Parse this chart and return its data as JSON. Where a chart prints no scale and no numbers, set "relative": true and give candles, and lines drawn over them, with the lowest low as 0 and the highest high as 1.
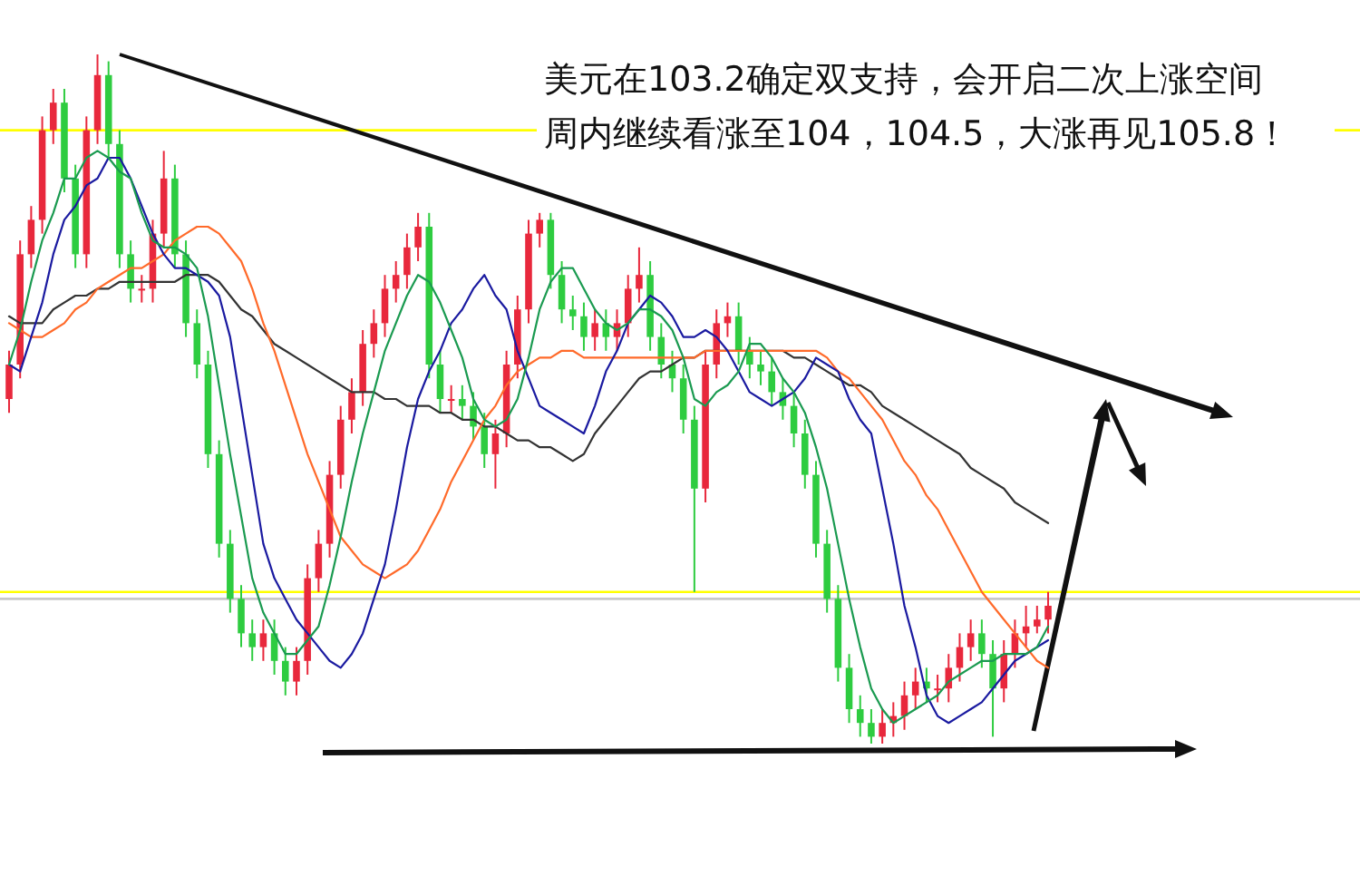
{
  "chart_data": {
    "type": "candlestick",
    "title": "美元在103.2确定双支持，会开启二次上涨空间",
    "subtitle": "周内继续看涨至104，104.5，大涨再见105.8！",
    "relative": true,
    "categories": [
      null,
      null,
      null,
      null,
      null,
      null,
      null,
      null,
      null,
      null,
      null,
      null,
      null,
      null,
      null,
      null,
      null,
      null,
      null,
      null,
      null,
      null,
      null,
      null,
      null,
      null,
      null,
      null,
      null,
      null,
      null,
      null,
      null,
      null,
      null,
      null,
      null,
      null,
      null,
      null,
      null,
      null,
      null,
      null,
      null,
      null,
      null,
      null,
      null,
      null,
      null,
      null,
      null,
      null,
      null,
      null,
      null,
      null,
      null,
      null,
      null,
      null,
      null,
      null,
      null,
      null,
      null,
      null,
      null,
      null,
      null,
      null,
      null,
      null,
      null,
      null,
      null,
      null,
      null,
      null,
      null,
      null,
      null,
      null,
      null,
      null,
      null,
      null,
      null,
      null,
      null,
      null,
      null,
      null,
      null
    ],
    "colors": [
      "#e8283c",
      "#e8283c",
      "#e8283c",
      "#e8283c",
      "#e8283c",
      "#2ecc40",
      "#2ecc40",
      "#e8283c",
      "#e8283c",
      "#2ecc40",
      "#2ecc40",
      "#2ecc40",
      "#e8283c",
      "#e8283c",
      "#e8283c",
      "#2ecc40",
      "#2ecc40",
      "#2ecc40",
      "#2ecc40",
      "#2ecc40",
      "#2ecc40",
      "#2ecc40",
      "#2ecc40",
      "#e8283c",
      "#2ecc40",
      "#2ecc40",
      "#e8283c",
      "#e8283c",
      "#e8283c",
      "#e8283c",
      "#e8283c",
      "#e8283c",
      "#e8283c",
      "#e8283c",
      "#e8283c",
      "#e8283c",
      "#e8283c",
      "#e8283c",
      "#2ecc40",
      "#2ecc40",
      "#e8283c",
      "#2ecc40",
      "#2ecc40",
      "#2ecc40",
      "#e8283c",
      "#e8283c",
      "#e8283c",
      "#e8283c",
      "#e8283c",
      "#2ecc40",
      "#2ecc40",
      "#2ecc40",
      "#2ecc40",
      "#e8283c",
      "#2ecc40",
      "#e8283c",
      "#e8283c",
      "#e8283c",
      "#2ecc40",
      "#2ecc40",
      "#2ecc40",
      "#2ecc40",
      "#2ecc40",
      "#e8283c",
      "#e8283c",
      "#e8283c",
      "#2ecc40",
      "#2ecc40",
      "#2ecc40",
      "#2ecc40",
      "#2ecc40",
      "#2ecc40",
      "#2ecc40",
      "#2ecc40",
      "#2ecc40",
      "#2ecc40",
      "#2ecc40",
      "#2ecc40",
      "#2ecc40",
      "#e8283c",
      "#e8283c",
      "#e8283c",
      "#e8283c",
      "#2ecc40",
      "#e8283c",
      "#e8283c",
      "#e8283c",
      "#e8283c",
      "#2ecc40",
      "#2ecc40",
      "#e8283c",
      "#e8283c",
      "#e8283c",
      "#e8283c",
      "#e8283c"
    ],
    "ohlc": [
      [
        0.5,
        0.57,
        0.48,
        0.55
      ],
      [
        0.55,
        0.73,
        0.53,
        0.71
      ],
      [
        0.71,
        0.78,
        0.69,
        0.76
      ],
      [
        0.76,
        0.91,
        0.74,
        0.89
      ],
      [
        0.89,
        0.95,
        0.87,
        0.93
      ],
      [
        0.93,
        0.95,
        0.8,
        0.82
      ],
      [
        0.82,
        0.84,
        0.69,
        0.71
      ],
      [
        0.71,
        0.91,
        0.69,
        0.89
      ],
      [
        0.89,
        1.0,
        0.87,
        0.97
      ],
      [
        0.97,
        0.99,
        0.85,
        0.87
      ],
      [
        0.87,
        0.89,
        0.69,
        0.71
      ],
      [
        0.71,
        0.73,
        0.64,
        0.66
      ],
      [
        0.66,
        0.68,
        0.64,
        0.66
      ],
      [
        0.66,
        0.76,
        0.64,
        0.74
      ],
      [
        0.74,
        0.86,
        0.72,
        0.82
      ],
      [
        0.82,
        0.84,
        0.69,
        0.71
      ],
      [
        0.71,
        0.73,
        0.59,
        0.61
      ],
      [
        0.61,
        0.63,
        0.53,
        0.55
      ],
      [
        0.55,
        0.57,
        0.4,
        0.42
      ],
      [
        0.42,
        0.44,
        0.27,
        0.29
      ],
      [
        0.29,
        0.31,
        0.19,
        0.21
      ],
      [
        0.21,
        0.23,
        0.14,
        0.16
      ],
      [
        0.16,
        0.18,
        0.12,
        0.14
      ],
      [
        0.14,
        0.18,
        0.12,
        0.16
      ],
      [
        0.16,
        0.18,
        0.1,
        0.12
      ],
      [
        0.12,
        0.14,
        0.07,
        0.09
      ],
      [
        0.09,
        0.14,
        0.07,
        0.12
      ],
      [
        0.12,
        0.26,
        0.1,
        0.24
      ],
      [
        0.24,
        0.31,
        0.22,
        0.29
      ],
      [
        0.29,
        0.41,
        0.27,
        0.39
      ],
      [
        0.39,
        0.49,
        0.37,
        0.47
      ],
      [
        0.47,
        0.53,
        0.45,
        0.51
      ],
      [
        0.51,
        0.6,
        0.49,
        0.58
      ],
      [
        0.58,
        0.63,
        0.56,
        0.61
      ],
      [
        0.61,
        0.68,
        0.59,
        0.66
      ],
      [
        0.66,
        0.7,
        0.64,
        0.68
      ],
      [
        0.68,
        0.74,
        0.66,
        0.72
      ],
      [
        0.72,
        0.77,
        0.7,
        0.75
      ],
      [
        0.75,
        0.77,
        0.53,
        0.55
      ],
      [
        0.55,
        0.57,
        0.48,
        0.5
      ],
      [
        0.5,
        0.52,
        0.48,
        0.5
      ],
      [
        0.5,
        0.52,
        0.47,
        0.49
      ],
      [
        0.49,
        0.51,
        0.44,
        0.46
      ],
      [
        0.46,
        0.48,
        0.4,
        0.42
      ],
      [
        0.42,
        0.47,
        0.37,
        0.45
      ],
      [
        0.45,
        0.57,
        0.43,
        0.55
      ],
      [
        0.55,
        0.65,
        0.53,
        0.63
      ],
      [
        0.63,
        0.76,
        0.61,
        0.74
      ],
      [
        0.74,
        0.77,
        0.72,
        0.76
      ],
      [
        0.76,
        0.77,
        0.66,
        0.68
      ],
      [
        0.68,
        0.7,
        0.61,
        0.63
      ],
      [
        0.63,
        0.65,
        0.6,
        0.62
      ],
      [
        0.62,
        0.64,
        0.57,
        0.59
      ],
      [
        0.59,
        0.63,
        0.57,
        0.61
      ],
      [
        0.61,
        0.63,
        0.57,
        0.59
      ],
      [
        0.59,
        0.63,
        0.57,
        0.61
      ],
      [
        0.61,
        0.68,
        0.59,
        0.66
      ],
      [
        0.66,
        0.72,
        0.64,
        0.68
      ],
      [
        0.68,
        0.7,
        0.57,
        0.59
      ],
      [
        0.59,
        0.61,
        0.53,
        0.55
      ],
      [
        0.55,
        0.57,
        0.51,
        0.53
      ],
      [
        0.53,
        0.55,
        0.45,
        0.47
      ],
      [
        0.47,
        0.49,
        0.22,
        0.37
      ],
      [
        0.37,
        0.57,
        0.35,
        0.55
      ],
      [
        0.55,
        0.63,
        0.53,
        0.61
      ],
      [
        0.61,
        0.64,
        0.59,
        0.62
      ],
      [
        0.62,
        0.64,
        0.55,
        0.57
      ],
      [
        0.57,
        0.59,
        0.53,
        0.55
      ],
      [
        0.55,
        0.57,
        0.52,
        0.54
      ],
      [
        0.54,
        0.56,
        0.49,
        0.51
      ],
      [
        0.51,
        0.53,
        0.47,
        0.49
      ],
      [
        0.49,
        0.51,
        0.43,
        0.45
      ],
      [
        0.45,
        0.47,
        0.37,
        0.39
      ],
      [
        0.39,
        0.41,
        0.27,
        0.29
      ],
      [
        0.29,
        0.31,
        0.19,
        0.21
      ],
      [
        0.21,
        0.23,
        0.09,
        0.11
      ],
      [
        0.11,
        0.13,
        0.03,
        0.05
      ],
      [
        0.05,
        0.07,
        0.01,
        0.03
      ],
      [
        0.03,
        0.05,
        0.0,
        0.01
      ],
      [
        0.01,
        0.05,
        0.0,
        0.03
      ],
      [
        0.03,
        0.06,
        0.01,
        0.04
      ],
      [
        0.04,
        0.09,
        0.02,
        0.07
      ],
      [
        0.07,
        0.11,
        0.05,
        0.09
      ],
      [
        0.09,
        0.11,
        0.06,
        0.08
      ],
      [
        0.08,
        0.1,
        0.06,
        0.08
      ],
      [
        0.08,
        0.13,
        0.06,
        0.11
      ],
      [
        0.11,
        0.16,
        0.09,
        0.14
      ],
      [
        0.14,
        0.18,
        0.12,
        0.16
      ],
      [
        0.16,
        0.18,
        0.11,
        0.13
      ],
      [
        0.13,
        0.15,
        0.01,
        0.08
      ],
      [
        0.08,
        0.15,
        0.06,
        0.13
      ],
      [
        0.13,
        0.18,
        0.11,
        0.16
      ],
      [
        0.16,
        0.2,
        0.14,
        0.17
      ],
      [
        0.17,
        0.2,
        0.16,
        0.18
      ],
      [
        0.18,
        0.22,
        0.16,
        0.2
      ]
    ],
    "series": [
      {
        "type": "line",
        "color": "#333333",
        "values": [
          0.62,
          0.61,
          0.61,
          0.61,
          0.63,
          0.64,
          0.65,
          0.65,
          0.66,
          0.66,
          0.67,
          0.67,
          0.67,
          0.67,
          0.67,
          0.67,
          0.68,
          0.68,
          0.68,
          0.67,
          0.65,
          0.63,
          0.62,
          0.6,
          0.58,
          0.57,
          0.56,
          0.55,
          0.54,
          0.53,
          0.52,
          0.51,
          0.51,
          0.51,
          0.5,
          0.5,
          0.49,
          0.49,
          0.49,
          0.48,
          0.48,
          0.47,
          0.47,
          0.46,
          0.46,
          0.45,
          0.44,
          0.44,
          0.43,
          0.43,
          0.42,
          0.41,
          0.42,
          0.45,
          0.47,
          0.49,
          0.51,
          0.53,
          0.54,
          0.54,
          0.55,
          0.56,
          0.56,
          0.57,
          0.57,
          0.57,
          0.57,
          0.57,
          0.57,
          0.57,
          0.57,
          0.56,
          0.56,
          0.55,
          0.54,
          0.53,
          0.52,
          0.52,
          0.51,
          0.49,
          0.48,
          0.47,
          0.46,
          0.45,
          0.44,
          0.43,
          0.42,
          0.4,
          0.39,
          0.38,
          0.37,
          0.35,
          0.34,
          0.33,
          0.32
        ]
      },
      {
        "type": "line",
        "color": "#ff6a2a",
        "values": [
          0.61,
          0.6,
          0.59,
          0.59,
          0.6,
          0.61,
          0.63,
          0.64,
          0.66,
          0.67,
          0.68,
          0.69,
          0.69,
          0.7,
          0.71,
          0.73,
          0.74,
          0.75,
          0.75,
          0.74,
          0.72,
          0.7,
          0.66,
          0.61,
          0.57,
          0.52,
          0.47,
          0.42,
          0.38,
          0.34,
          0.3,
          0.28,
          0.26,
          0.25,
          0.24,
          0.25,
          0.26,
          0.28,
          0.31,
          0.34,
          0.38,
          0.41,
          0.44,
          0.47,
          0.49,
          0.52,
          0.54,
          0.55,
          0.56,
          0.56,
          0.57,
          0.57,
          0.56,
          0.56,
          0.56,
          0.56,
          0.56,
          0.56,
          0.56,
          0.56,
          0.56,
          0.56,
          0.56,
          0.57,
          0.57,
          0.57,
          0.57,
          0.57,
          0.57,
          0.57,
          0.57,
          0.57,
          0.57,
          0.57,
          0.56,
          0.54,
          0.53,
          0.51,
          0.49,
          0.47,
          0.44,
          0.41,
          0.39,
          0.36,
          0.34,
          0.31,
          0.28,
          0.25,
          0.22,
          0.2,
          0.18,
          0.16,
          0.14,
          0.12,
          0.11
        ]
      },
      {
        "type": "line",
        "color": "#1a1aa0",
        "values": [
          0.55,
          0.54,
          0.59,
          0.64,
          0.71,
          0.76,
          0.78,
          0.81,
          0.82,
          0.85,
          0.85,
          0.82,
          0.78,
          0.74,
          0.71,
          0.69,
          0.69,
          0.68,
          0.67,
          0.65,
          0.59,
          0.49,
          0.39,
          0.29,
          0.24,
          0.21,
          0.18,
          0.16,
          0.14,
          0.12,
          0.11,
          0.13,
          0.16,
          0.21,
          0.26,
          0.34,
          0.43,
          0.5,
          0.54,
          0.57,
          0.61,
          0.63,
          0.66,
          0.68,
          0.65,
          0.63,
          0.57,
          0.53,
          0.49,
          0.48,
          0.47,
          0.46,
          0.45,
          0.49,
          0.54,
          0.57,
          0.61,
          0.63,
          0.65,
          0.64,
          0.62,
          0.59,
          0.59,
          0.6,
          0.59,
          0.57,
          0.54,
          0.51,
          0.5,
          0.49,
          0.5,
          0.51,
          0.53,
          0.56,
          0.55,
          0.54,
          0.5,
          0.47,
          0.45,
          0.37,
          0.29,
          0.2,
          0.14,
          0.07,
          0.04,
          0.03,
          0.04,
          0.05,
          0.06,
          0.08,
          0.1,
          0.12,
          0.13,
          0.14,
          0.15
        ]
      },
      {
        "type": "line",
        "color": "#1a9a50",
        "values": [
          0.55,
          0.6,
          0.67,
          0.73,
          0.77,
          0.82,
          0.82,
          0.85,
          0.86,
          0.85,
          0.83,
          0.82,
          0.77,
          0.73,
          0.72,
          0.72,
          0.71,
          0.69,
          0.62,
          0.52,
          0.42,
          0.33,
          0.24,
          0.19,
          0.16,
          0.13,
          0.13,
          0.15,
          0.17,
          0.23,
          0.3,
          0.38,
          0.45,
          0.51,
          0.57,
          0.61,
          0.65,
          0.68,
          0.67,
          0.64,
          0.6,
          0.56,
          0.5,
          0.47,
          0.46,
          0.47,
          0.5,
          0.56,
          0.63,
          0.67,
          0.69,
          0.69,
          0.66,
          0.63,
          0.61,
          0.6,
          0.61,
          0.63,
          0.63,
          0.62,
          0.6,
          0.56,
          0.5,
          0.49,
          0.51,
          0.52,
          0.54,
          0.58,
          0.58,
          0.56,
          0.53,
          0.51,
          0.48,
          0.43,
          0.37,
          0.29,
          0.21,
          0.14,
          0.08,
          0.05,
          0.03,
          0.04,
          0.05,
          0.06,
          0.07,
          0.09,
          0.1,
          0.11,
          0.12,
          0.12,
          0.13,
          0.13,
          0.13,
          0.14,
          0.17
        ]
      }
    ],
    "ref_lines": [
      {
        "axis": "y",
        "value": 0.89,
        "color": "#ffff00"
      },
      {
        "axis": "y",
        "value": 0.21,
        "color": "#c8c8c8"
      },
      {
        "axis": "y",
        "value": 0.22,
        "color": "#ffff00"
      }
    ]
  }
}
